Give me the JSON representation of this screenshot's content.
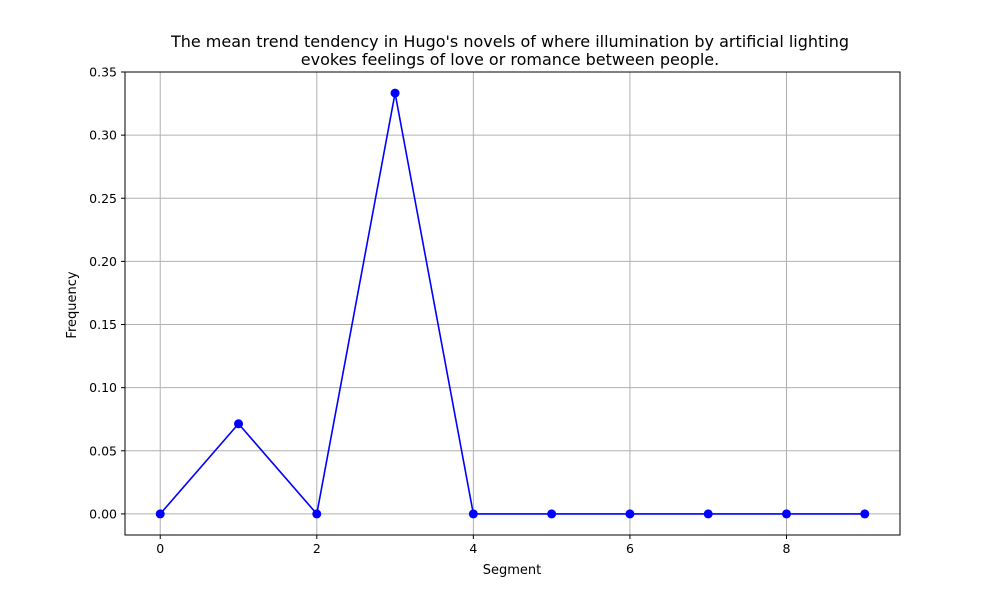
{
  "chart_data": {
    "type": "line",
    "title_lines": [
      "The mean trend tendency in Hugo's novels of where illumination by artificial lighting",
      "evokes feelings of love or romance between people."
    ],
    "xlabel": "Segment",
    "ylabel": "Frequency",
    "x": [
      0,
      1,
      2,
      3,
      4,
      5,
      6,
      7,
      8,
      9
    ],
    "series": [
      {
        "values": [
          0,
          0.0714,
          0,
          0.3333,
          0,
          0,
          0,
          0,
          0,
          0
        ]
      }
    ],
    "xlim": [
      -0.45,
      9.45
    ],
    "ylim": [
      -0.0167,
      0.35
    ],
    "xticks": [
      0,
      2,
      4,
      6,
      8
    ],
    "xtick_labels": [
      "0",
      "2",
      "4",
      "6",
      "8"
    ],
    "yticks": [
      0,
      0.05,
      0.1,
      0.15,
      0.2,
      0.25,
      0.3,
      0.35
    ],
    "ytick_labels": [
      "0.00",
      "0.05",
      "0.10",
      "0.15",
      "0.20",
      "0.25",
      "0.30",
      "0.35"
    ],
    "grid": true,
    "line_color": "#0000ff",
    "marker": "circle"
  }
}
